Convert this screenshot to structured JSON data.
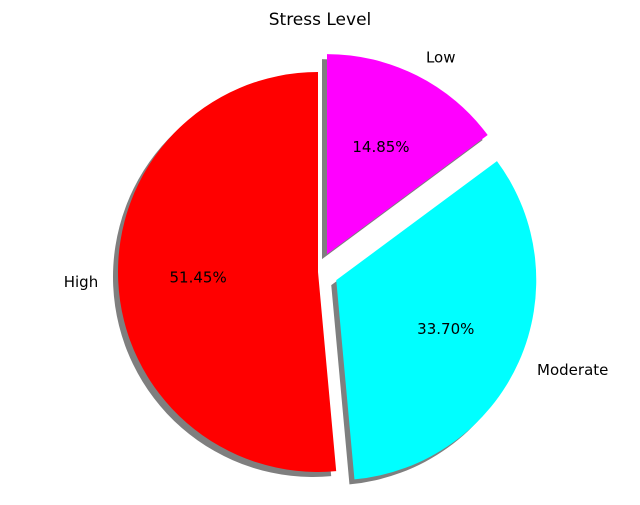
{
  "chart_data": {
    "type": "pie",
    "title": "Stress Level",
    "slices": [
      {
        "label": "High",
        "value": 51.45,
        "pct_label": "51.45%",
        "color": "#ff0000",
        "exploded": false
      },
      {
        "label": "Moderate",
        "value": 33.7,
        "pct_label": "33.70%",
        "color": "#00ffff",
        "exploded": true
      },
      {
        "label": "Low",
        "value": 14.85,
        "pct_label": "14.85%",
        "color": "#ff00ff",
        "exploded": true
      }
    ],
    "start_angle_deg": 90,
    "direction": "counterclockwise",
    "shadow": true
  }
}
